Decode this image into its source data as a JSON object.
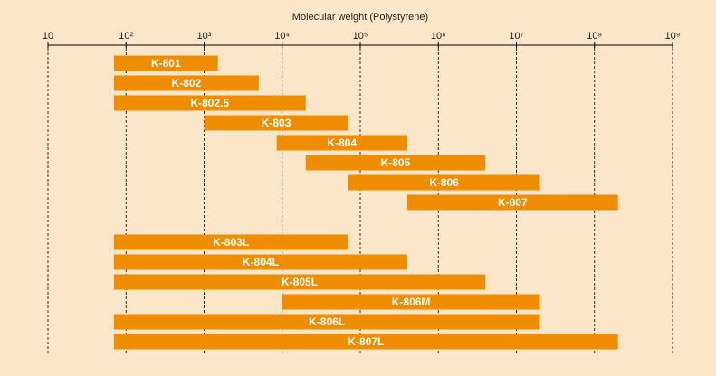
{
  "chart_data": {
    "type": "floating-bar",
    "title": "Molecular weight (Polystyrene)",
    "color": "#f08c00",
    "log_scale": true,
    "grid": true,
    "categories": [
      "K-801",
      "K-802",
      "K-802.5",
      "K-803",
      "K-804",
      "K-805",
      "K-806",
      "K-807",
      null,
      "K-803L",
      "K-804L",
      "K-805L",
      "K-806M",
      "K-806L",
      "K-807L"
    ],
    "low": [
      70,
      70,
      70,
      1000,
      8500,
      20000,
      70000,
      400000,
      null,
      70,
      70,
      70,
      10000,
      70,
      70
    ],
    "high": [
      1500,
      5000,
      20000,
      70000,
      400000,
      4000000,
      20000000,
      200000000,
      null,
      70000,
      400000,
      4000000,
      20000000,
      20000000,
      200000000
    ],
    "xlim": [
      10,
      1000000000
    ],
    "xticks": [
      10,
      {
        "value": 100,
        "label": "10²"
      },
      {
        "value": 1000,
        "label": "10³"
      },
      {
        "value": 10000,
        "label": "10⁴"
      },
      {
        "value": 100000,
        "label": "10⁵"
      },
      {
        "value": 1000000,
        "label": "10⁶"
      },
      {
        "value": 10000000,
        "label": "10⁷"
      },
      {
        "value": 100000000,
        "label": "10⁸"
      },
      {
        "value": 1000000000,
        "label": "10⁹"
      }
    ]
  }
}
